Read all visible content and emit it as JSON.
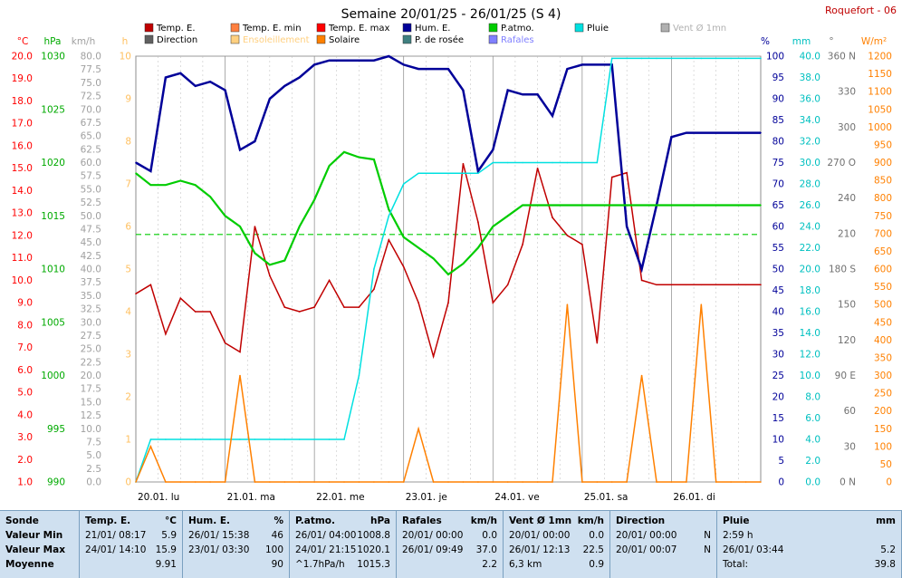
{
  "title": "Semaine 20/01/25 - 26/01/25 (S 4)",
  "station": "Roquefort - 06",
  "legend": [
    {
      "label": "Temp. E.",
      "color": "#c00000",
      "icon": "square-icon"
    },
    {
      "label": "Temp. E. min",
      "color": "#ff8040",
      "icon": "square-icon"
    },
    {
      "label": "Temp. E. max",
      "color": "#ff0000",
      "icon": "square-icon"
    },
    {
      "label": "Hum. E.",
      "color": "#000099",
      "icon": "square-icon"
    },
    {
      "label": "P.atmo.",
      "color": "#00cc00",
      "icon": "square-icon"
    },
    {
      "label": "Pluie",
      "color": "#00e0e0",
      "icon": "square-icon"
    },
    {
      "label": "Vent Ø 1mn",
      "color": "#b0b0b0",
      "icon": "square-icon"
    },
    {
      "label": "Direction",
      "color": "#606060",
      "icon": "square-icon"
    },
    {
      "label": "Ensoleillement",
      "color": "#ffd080",
      "icon": "square-icon"
    },
    {
      "label": "Solaire",
      "color": "#ff8000",
      "icon": "square-icon"
    },
    {
      "label": "P. de rosée",
      "color": "#408080",
      "icon": "square-icon"
    },
    {
      "label": "Rafales",
      "color": "#8080ff",
      "icon": "square-icon"
    }
  ],
  "axes": {
    "temp": {
      "unit": "°C",
      "color": "#ff0000",
      "ticks": [
        "20.0",
        "19.0",
        "18.0",
        "17.0",
        "16.0",
        "15.0",
        "14.0",
        "13.0",
        "12.0",
        "11.0",
        "10.0",
        "9.0",
        "8.0",
        "7.0",
        "6.0",
        "5.0",
        "4.0",
        "3.0",
        "2.0",
        "1.0"
      ]
    },
    "press": {
      "unit": "hPa",
      "color": "#00aa00",
      "ticks": [
        "1030",
        "1025",
        "1020",
        "1015",
        "1010",
        "1005",
        "1000",
        "995",
        "990"
      ]
    },
    "wind": {
      "unit": "km/h",
      "color": "#a0a0a0",
      "ticks": [
        "80.0",
        "77.5",
        "75.0",
        "72.5",
        "70.0",
        "67.5",
        "65.0",
        "62.5",
        "60.0",
        "57.5",
        "55.0",
        "52.5",
        "50.0",
        "47.5",
        "45.0",
        "42.5",
        "40.0",
        "37.5",
        "35.0",
        "32.5",
        "30.0",
        "27.5",
        "25.0",
        "22.5",
        "20.0",
        "17.5",
        "15.0",
        "12.5",
        "10.0",
        "7.5",
        "5.0",
        "2.5",
        "0.0"
      ]
    },
    "sun": {
      "unit": "h",
      "color": "#ffc060",
      "ticks": [
        "10",
        "9",
        "8",
        "7",
        "6",
        "5",
        "4",
        "3",
        "2",
        "1",
        "0"
      ]
    },
    "hum": {
      "unit": "%",
      "color": "#000099",
      "ticks": [
        "100",
        "95",
        "90",
        "85",
        "80",
        "75",
        "70",
        "65",
        "60",
        "55",
        "50",
        "45",
        "40",
        "35",
        "30",
        "25",
        "20",
        "15",
        "10",
        "5",
        "0"
      ]
    },
    "rain": {
      "unit": "mm",
      "color": "#00c0c0",
      "ticks": [
        "40.0",
        "38.0",
        "36.0",
        "34.0",
        "32.0",
        "30.0",
        "28.0",
        "26.0",
        "24.0",
        "22.0",
        "20.0",
        "18.0",
        "16.0",
        "14.0",
        "12.0",
        "10.0",
        "8.0",
        "6.0",
        "4.0",
        "2.0",
        "0.0"
      ]
    },
    "dir": {
      "unit": "°",
      "color": "#707070",
      "ticks": [
        "360 N",
        "330",
        "300",
        "270 O",
        "240",
        "210",
        "180 S",
        "150",
        "120",
        "90 E",
        "60",
        "30",
        "0 N"
      ]
    },
    "solar": {
      "unit": "W/m²",
      "color": "#ff8000",
      "ticks": [
        "1200",
        "1150",
        "1100",
        "1050",
        "1000",
        "950",
        "900",
        "850",
        "800",
        "750",
        "700",
        "650",
        "600",
        "550",
        "500",
        "450",
        "400",
        "350",
        "300",
        "250",
        "200",
        "150",
        "100",
        "50",
        "0"
      ]
    }
  },
  "days": [
    "20.01. lu",
    "21.01. ma",
    "22.01. me",
    "23.01. je",
    "24.01. ve",
    "25.01. sa",
    "26.01. di"
  ],
  "chart_data": {
    "type": "line",
    "x": [
      0,
      4,
      8,
      12,
      16,
      20,
      24,
      28,
      32,
      36,
      40,
      44,
      48,
      52,
      56,
      60,
      64,
      68,
      72,
      76,
      80,
      84,
      88,
      92,
      96,
      100,
      104,
      108,
      112,
      116,
      120,
      124,
      128,
      132,
      136,
      140,
      144,
      148,
      152,
      156,
      160,
      164,
      168
    ],
    "series": [
      {
        "name": "Temp. E.",
        "unit": "°C",
        "color": "#c00000",
        "values": [
          9.4,
          9.8,
          7.6,
          9.2,
          8.6,
          8.6,
          7.2,
          6.8,
          12.4,
          10.2,
          8.8,
          8.6,
          8.8,
          10.0,
          8.8,
          8.8,
          9.6,
          11.8,
          10.6,
          9.0,
          6.6,
          9.0,
          15.2,
          12.6,
          9.0,
          9.8,
          11.6,
          15.0,
          12.8,
          12.0,
          11.6,
          7.2,
          14.6,
          14.8,
          10.0,
          9.8,
          9.8,
          9.8,
          9.8,
          9.8,
          9.8,
          9.8,
          9.8
        ]
      },
      {
        "name": "Hum. E.",
        "unit": "%",
        "color": "#000099",
        "values": [
          75,
          73,
          95,
          96,
          93,
          94,
          92,
          78,
          80,
          90,
          93,
          95,
          98,
          99,
          99,
          99,
          99,
          100,
          98,
          97,
          97,
          97,
          92,
          73,
          78,
          92,
          91,
          91,
          86,
          97,
          98,
          98,
          98,
          60,
          50,
          65,
          81,
          82,
          82,
          82,
          82,
          82,
          82
        ]
      },
      {
        "name": "P.atmo.",
        "unit": "hPa",
        "color": "#00cc00",
        "values": [
          1019.0,
          1017.9,
          1017.9,
          1018.3,
          1017.9,
          1016.8,
          1015.0,
          1014.0,
          1011.5,
          1010.4,
          1010.8,
          1014.0,
          1016.5,
          1019.7,
          1021.0,
          1020.5,
          1020.3,
          1015.6,
          1013.0,
          1012.0,
          1011.0,
          1009.5,
          1010.5,
          1012.0,
          1014.0,
          1015.0,
          1016.0,
          1016.0,
          1016.0,
          1016.0,
          1016.0,
          1016.0,
          1016.0,
          1016.0,
          1016.0,
          1016.0,
          1016.0,
          1016.0,
          1016.0,
          1016.0,
          1016.0,
          1016.0,
          1016.0
        ]
      },
      {
        "name": "Pluie",
        "unit": "mm",
        "color": "#00e0e0",
        "values": [
          0,
          4.0,
          4.0,
          4.0,
          4.0,
          4.0,
          4.0,
          4.0,
          4.0,
          4.0,
          4.0,
          4.0,
          4.0,
          4.0,
          4.0,
          10.0,
          20.0,
          25.0,
          28.0,
          29.0,
          29.0,
          29.0,
          29.0,
          29.0,
          30.0,
          30.0,
          30.0,
          30.0,
          30.0,
          30.0,
          30.0,
          30.0,
          39.8,
          39.8,
          39.8,
          39.8,
          39.8,
          39.8,
          39.8,
          39.8,
          39.8,
          39.8,
          39.8
        ]
      },
      {
        "name": "Solaire",
        "unit": "W/m²",
        "color": "#ff8000",
        "values": [
          0,
          100,
          0,
          0,
          0,
          0,
          0,
          300,
          0,
          0,
          0,
          0,
          0,
          0,
          0,
          0,
          0,
          0,
          0,
          150,
          0,
          0,
          0,
          0,
          0,
          0,
          0,
          0,
          0,
          500,
          0,
          0,
          0,
          0,
          300,
          0,
          0,
          0,
          500,
          0,
          0,
          0,
          0
        ]
      }
    ],
    "ylim_temp": [
      1,
      20
    ],
    "ylim_hum": [
      0,
      100
    ],
    "ylim_press": [
      990,
      1030
    ],
    "ylim_rain": [
      0,
      40
    ],
    "ylim_solar": [
      0,
      1200
    ],
    "reference_line": {
      "series": "P.atmo.",
      "value": 1013.25
    }
  },
  "table": [
    {
      "title": "Sonde",
      "unit": "",
      "rows": [
        [
          "Valeur Min",
          ""
        ],
        [
          "Valeur Max",
          ""
        ],
        [
          "Moyenne",
          ""
        ]
      ]
    },
    {
      "title": "Temp. E.",
      "unit": "°C",
      "rows": [
        [
          "21/01/ 08:17",
          "5.9"
        ],
        [
          "24/01/ 14:10",
          "15.9"
        ],
        [
          "",
          "9.91"
        ]
      ]
    },
    {
      "title": "Hum. E.",
      "unit": "%",
      "rows": [
        [
          "26/01/ 15:38",
          "46"
        ],
        [
          "23/01/ 03:30",
          "100"
        ],
        [
          "",
          "90"
        ]
      ]
    },
    {
      "title": "P.atmo.",
      "unit": "hPa",
      "rows": [
        [
          "26/01/ 04:00",
          "1008.8"
        ],
        [
          "24/01/ 21:15",
          "1020.1"
        ],
        [
          "^1.7hPa/h",
          "1015.3"
        ]
      ]
    },
    {
      "title": "Rafales",
      "unit": "km/h",
      "rows": [
        [
          "20/01/ 00:00",
          "0.0"
        ],
        [
          "26/01/ 09:49",
          "37.0"
        ],
        [
          "",
          "2.2"
        ]
      ]
    },
    {
      "title": "Vent Ø 1mn",
      "unit": "km/h",
      "rows": [
        [
          "20/01/ 00:00",
          "0.0"
        ],
        [
          "26/01/ 12:13",
          "22.5"
        ],
        [
          "6,3 km",
          "0.9"
        ]
      ]
    },
    {
      "title": "Direction",
      "unit": "",
      "rows": [
        [
          "20/01/ 00:00",
          "N"
        ],
        [
          "20/01/ 00:07",
          "N"
        ],
        [
          "",
          ""
        ]
      ]
    },
    {
      "title": "Pluie",
      "unit": "mm",
      "rows": [
        [
          "2:59 h",
          ""
        ],
        [
          "26/01/ 03:44",
          "5.2"
        ],
        [
          "Total:",
          "39.8"
        ]
      ]
    }
  ]
}
